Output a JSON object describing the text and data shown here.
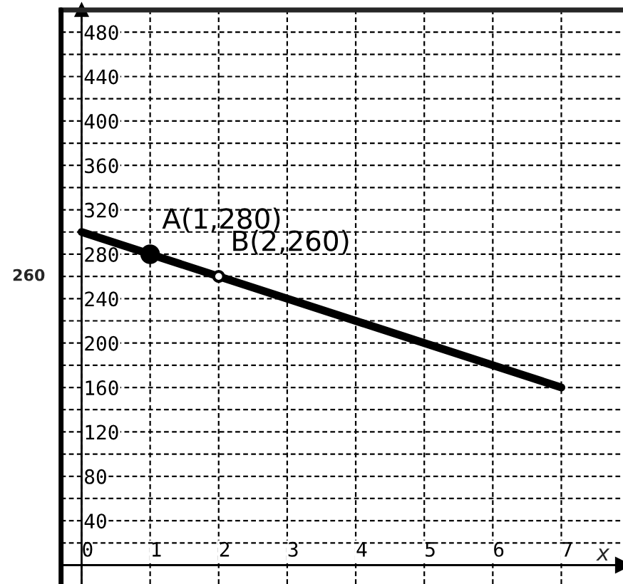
{
  "chart_data": {
    "type": "line",
    "xlabel": "x",
    "xlim": [
      -0.3,
      7.9
    ],
    "ylim": [
      -17,
      500
    ],
    "xticks": [
      0,
      1,
      2,
      3,
      4,
      5,
      6,
      7
    ],
    "yticks": [
      {
        "value": 20,
        "label": null
      },
      40,
      {
        "value": 60,
        "label": null
      },
      80,
      {
        "value": 100,
        "label": null
      },
      120,
      {
        "value": 140,
        "label": null
      },
      160,
      {
        "value": 180,
        "label": null
      },
      200,
      {
        "value": 220,
        "label": null
      },
      240,
      {
        "value": 260,
        "label": null
      },
      280,
      {
        "value": 300,
        "label": null
      },
      320,
      {
        "value": 340,
        "label": null
      },
      360,
      {
        "value": 380,
        "label": null
      },
      400,
      {
        "value": 420,
        "label": null
      },
      440,
      {
        "value": 460,
        "label": null
      },
      480
    ],
    "grid": true,
    "series": [
      {
        "color": "#000000",
        "x": [
          0,
          7
        ],
        "values": [
          300,
          160
        ],
        "marker": "none",
        "line_style": "solid"
      },
      {
        "type": "scatter",
        "color": "#000000",
        "x": [
          1
        ],
        "values": [
          280
        ],
        "marker": "circle"
      },
      {
        "type": "scatter",
        "color": "#ffffff",
        "x": [
          2
        ],
        "values": [
          260
        ],
        "marker": "circle"
      }
    ],
    "annotations": [
      {
        "text": "A(1,280)",
        "x": 1,
        "y": 280
      },
      {
        "text": "B(2,260)",
        "x": 2,
        "y": 260
      },
      "260"
    ]
  }
}
